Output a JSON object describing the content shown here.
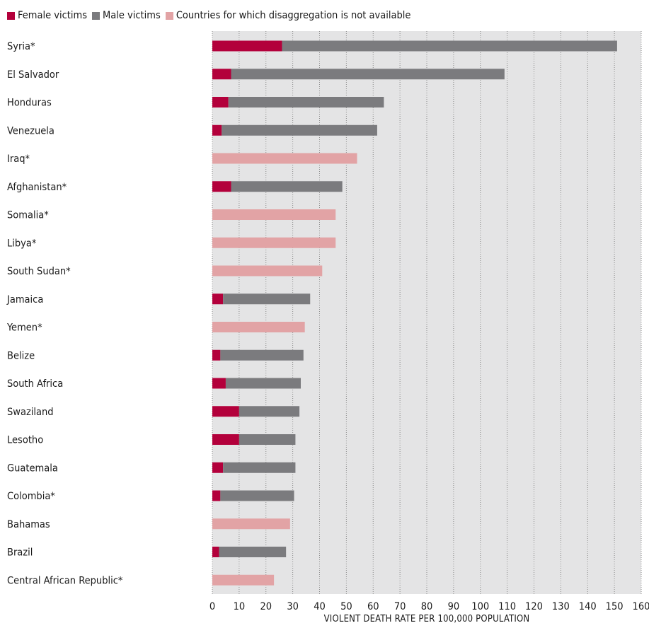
{
  "chart_data": {
    "type": "bar",
    "orientation": "horizontal",
    "stacked": true,
    "title": "",
    "xlabel": "VIOLENT DEATH RATE PER 100,000 POPULATION",
    "ylabel": "",
    "xlim": [
      0,
      160
    ],
    "x_ticks": [
      0,
      10,
      20,
      30,
      40,
      50,
      60,
      70,
      80,
      90,
      100,
      110,
      120,
      130,
      140,
      150,
      160
    ],
    "grid": "vertical dotted",
    "legend_position": "top-left",
    "categories": [
      "Syria*",
      "El Salvador",
      "Honduras",
      "Venezuela",
      "Iraq*",
      "Afghanistan*",
      "Somalia*",
      "Libya*",
      "South Sudan*",
      "Jamaica",
      "Yemen*",
      "Belize",
      "South Africa",
      "Swaziland",
      "Lesotho",
      "Guatemala",
      "Colombia*",
      "Bahamas",
      "Brazil",
      "Central African Republic*"
    ],
    "series": [
      {
        "name": "Female victims",
        "color": "#b3003b",
        "values": [
          26,
          7,
          6,
          3.5,
          0,
          7,
          0,
          0,
          0,
          4,
          0,
          3,
          5,
          10,
          10,
          4,
          3,
          0,
          2.5,
          0
        ]
      },
      {
        "name": "Male victims",
        "color": "#7b7b7e",
        "values": [
          125,
          102,
          58,
          58,
          0,
          41.5,
          0,
          0,
          0,
          32.5,
          0,
          31,
          28,
          22.5,
          21,
          27,
          27.5,
          0,
          25,
          0
        ]
      },
      {
        "name": "Countries for which disaggregation is not available",
        "color": "#e2a3a5",
        "values": [
          0,
          0,
          0,
          0,
          54,
          0,
          46,
          46,
          41,
          0,
          34.5,
          0,
          0,
          0,
          0,
          0,
          0,
          29,
          0,
          23
        ]
      }
    ]
  },
  "colors": {
    "plot_background": "#e4e4e5",
    "grid": "#8a8a8a"
  }
}
